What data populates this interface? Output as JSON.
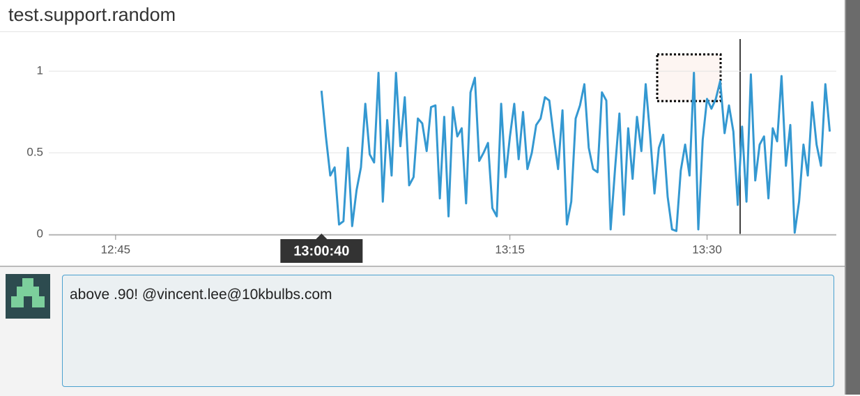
{
  "title": "test.support.random",
  "chart_data": {
    "type": "line",
    "color": "#3498d1",
    "x": [
      "13:00:40",
      "13:01:00",
      "13:01:20",
      "13:01:40",
      "13:02:00",
      "13:02:20",
      "13:02:40",
      "13:03:00",
      "13:03:20",
      "13:03:40",
      "13:04:00",
      "13:04:20",
      "13:04:40",
      "13:05:00",
      "13:05:20",
      "13:05:40",
      "13:06:00",
      "13:06:20",
      "13:06:40",
      "13:07:00",
      "13:07:20",
      "13:07:40",
      "13:08:00",
      "13:08:20",
      "13:08:40",
      "13:09:00",
      "13:09:20",
      "13:09:40",
      "13:10:00",
      "13:10:20",
      "13:10:40",
      "13:11:00",
      "13:11:20",
      "13:11:40",
      "13:12:00",
      "13:12:20",
      "13:12:40",
      "13:13:00",
      "13:13:20",
      "13:13:40",
      "13:14:00",
      "13:14:20",
      "13:14:40",
      "13:15:00",
      "13:15:20",
      "13:15:40",
      "13:16:00",
      "13:16:20",
      "13:16:40",
      "13:17:00",
      "13:17:20",
      "13:17:40",
      "13:18:00",
      "13:18:20",
      "13:18:40",
      "13:19:00",
      "13:19:20",
      "13:19:40",
      "13:20:00",
      "13:20:20",
      "13:20:40",
      "13:21:00",
      "13:21:20",
      "13:21:40",
      "13:22:00",
      "13:22:20",
      "13:22:40",
      "13:23:00",
      "13:23:20",
      "13:23:40",
      "13:24:00",
      "13:24:20",
      "13:24:40",
      "13:25:00",
      "13:25:20",
      "13:25:40",
      "13:26:00",
      "13:26:20",
      "13:26:40",
      "13:27:00",
      "13:27:20",
      "13:27:40",
      "13:28:00",
      "13:28:20",
      "13:28:40",
      "13:29:00",
      "13:29:20",
      "13:29:40",
      "13:30:00",
      "13:30:20",
      "13:30:40",
      "13:31:00",
      "13:31:20",
      "13:31:40",
      "13:32:00",
      "13:32:20",
      "13:32:40",
      "13:33:00",
      "13:33:20",
      "13:33:40",
      "13:34:00",
      "13:34:20",
      "13:34:40",
      "13:35:00",
      "13:35:20",
      "13:35:40",
      "13:36:00",
      "13:36:20",
      "13:36:40",
      "13:37:00",
      "13:37:20",
      "13:37:40",
      "13:38:00",
      "13:38:20",
      "13:38:40",
      "13:39:00",
      "13:39:20"
    ],
    "values": [
      0.88,
      0.6,
      0.36,
      0.41,
      0.06,
      0.08,
      0.53,
      0.05,
      0.27,
      0.41,
      0.8,
      0.49,
      0.44,
      0.99,
      0.2,
      0.7,
      0.36,
      0.99,
      0.54,
      0.84,
      0.3,
      0.35,
      0.71,
      0.68,
      0.51,
      0.78,
      0.79,
      0.22,
      0.72,
      0.11,
      0.78,
      0.6,
      0.65,
      0.19,
      0.87,
      0.96,
      0.45,
      0.5,
      0.56,
      0.16,
      0.11,
      0.8,
      0.35,
      0.6,
      0.8,
      0.46,
      0.75,
      0.4,
      0.5,
      0.67,
      0.71,
      0.84,
      0.82,
      0.6,
      0.4,
      0.76,
      0.06,
      0.2,
      0.71,
      0.79,
      0.92,
      0.53,
      0.4,
      0.38,
      0.87,
      0.82,
      0.03,
      0.4,
      0.74,
      0.12,
      0.65,
      0.34,
      0.72,
      0.51,
      0.92,
      0.61,
      0.25,
      0.53,
      0.61,
      0.23,
      0.03,
      0.02,
      0.39,
      0.55,
      0.36,
      0.99,
      0.03,
      0.58,
      0.83,
      0.77,
      0.83,
      0.94,
      0.62,
      0.79,
      0.63,
      0.18,
      0.66,
      0.2,
      0.98,
      0.33,
      0.55,
      0.6,
      0.22,
      0.65,
      0.57,
      0.97,
      0.42,
      0.67,
      0.01,
      0.2,
      0.55,
      0.36,
      0.81,
      0.55,
      0.42,
      0.92,
      0.63
    ],
    "xlim": [
      "12:39:55",
      "13:39:50"
    ],
    "xticks": [
      "12:45",
      "13:15",
      "13:30"
    ],
    "cursor": "13:00:40",
    "ylim": [
      0,
      1.24
    ],
    "yticks": [
      0,
      0.5,
      1
    ],
    "grid": true
  },
  "comment": {
    "text": "above .90! @vincent.lee@10kbulbs.com"
  }
}
